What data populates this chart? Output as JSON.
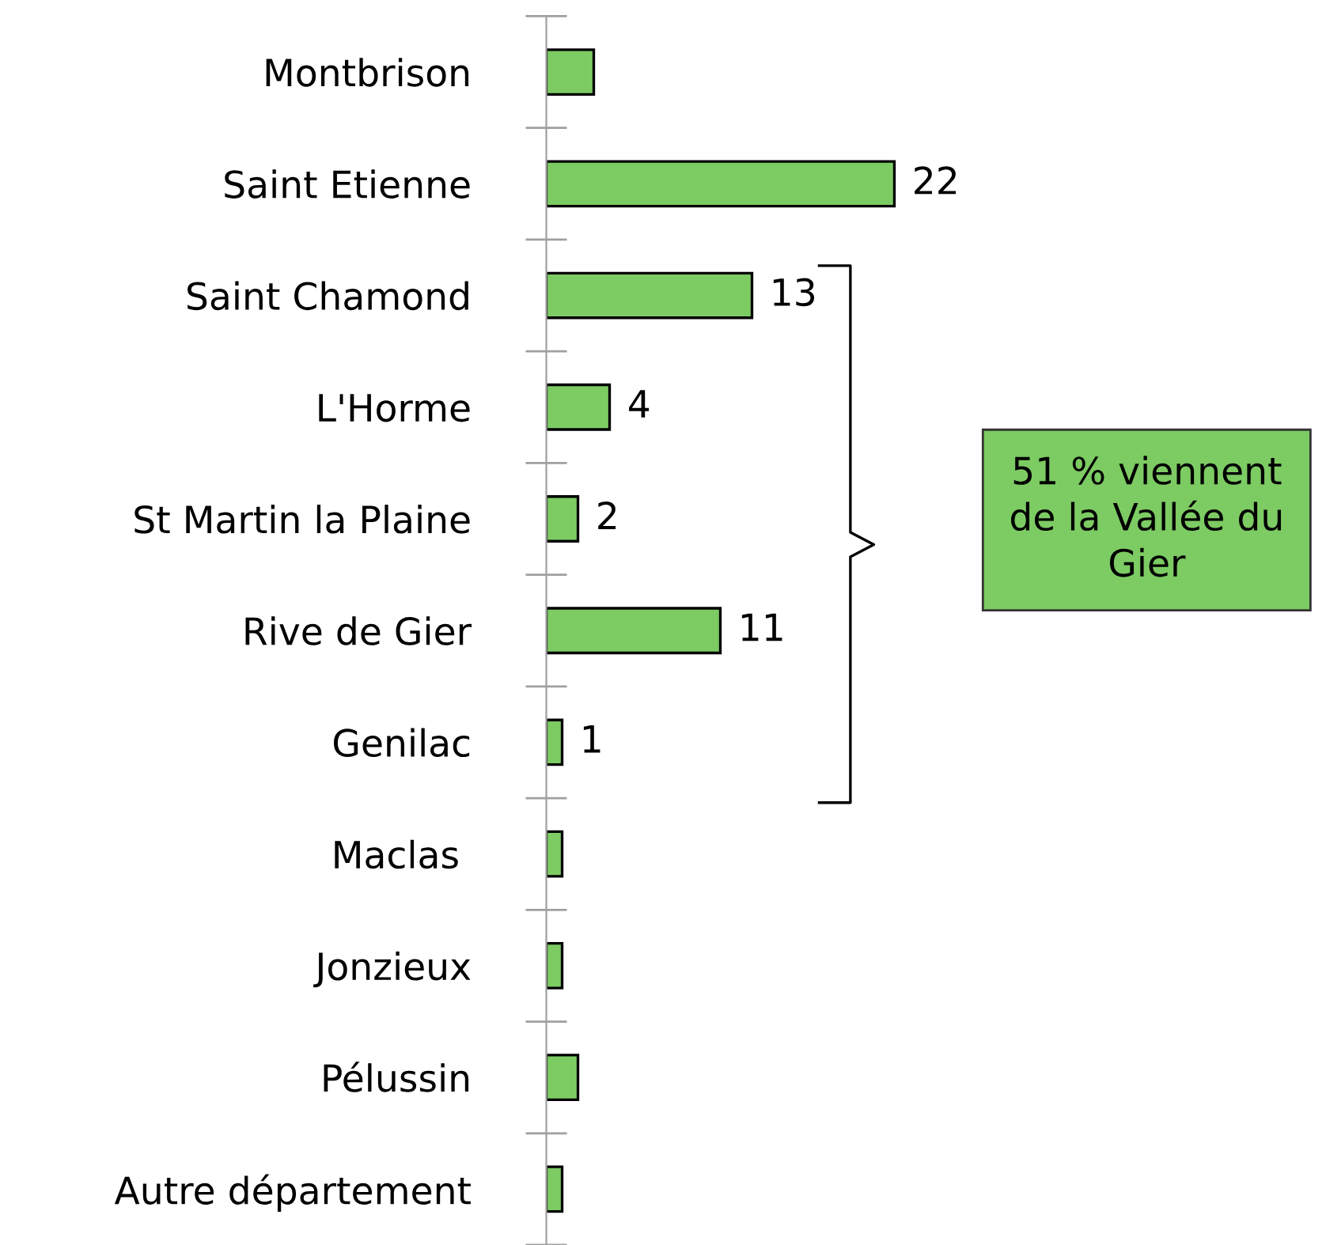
{
  "chart_data": {
    "type": "bar",
    "orientation": "horizontal",
    "categories": [
      "Montbrison",
      "Saint Etienne",
      "Saint Chamond",
      "L'Horme",
      "St Martin la Plaine",
      "Rive de Gier",
      "Genilac",
      "Maclas ",
      "Jonzieux",
      "Pélussin",
      "Autre département"
    ],
    "values": [
      3,
      22,
      13,
      4,
      2,
      11,
      1,
      1,
      1,
      2,
      1
    ],
    "value_labels": [
      null,
      "22",
      "13",
      "4",
      "2",
      "11",
      "1",
      null,
      null,
      null,
      null
    ],
    "color": "#7dcb63",
    "annotations": [
      "51 % viennent\nde la Vallée du\nGier"
    ],
    "grid": false,
    "legend": false
  }
}
